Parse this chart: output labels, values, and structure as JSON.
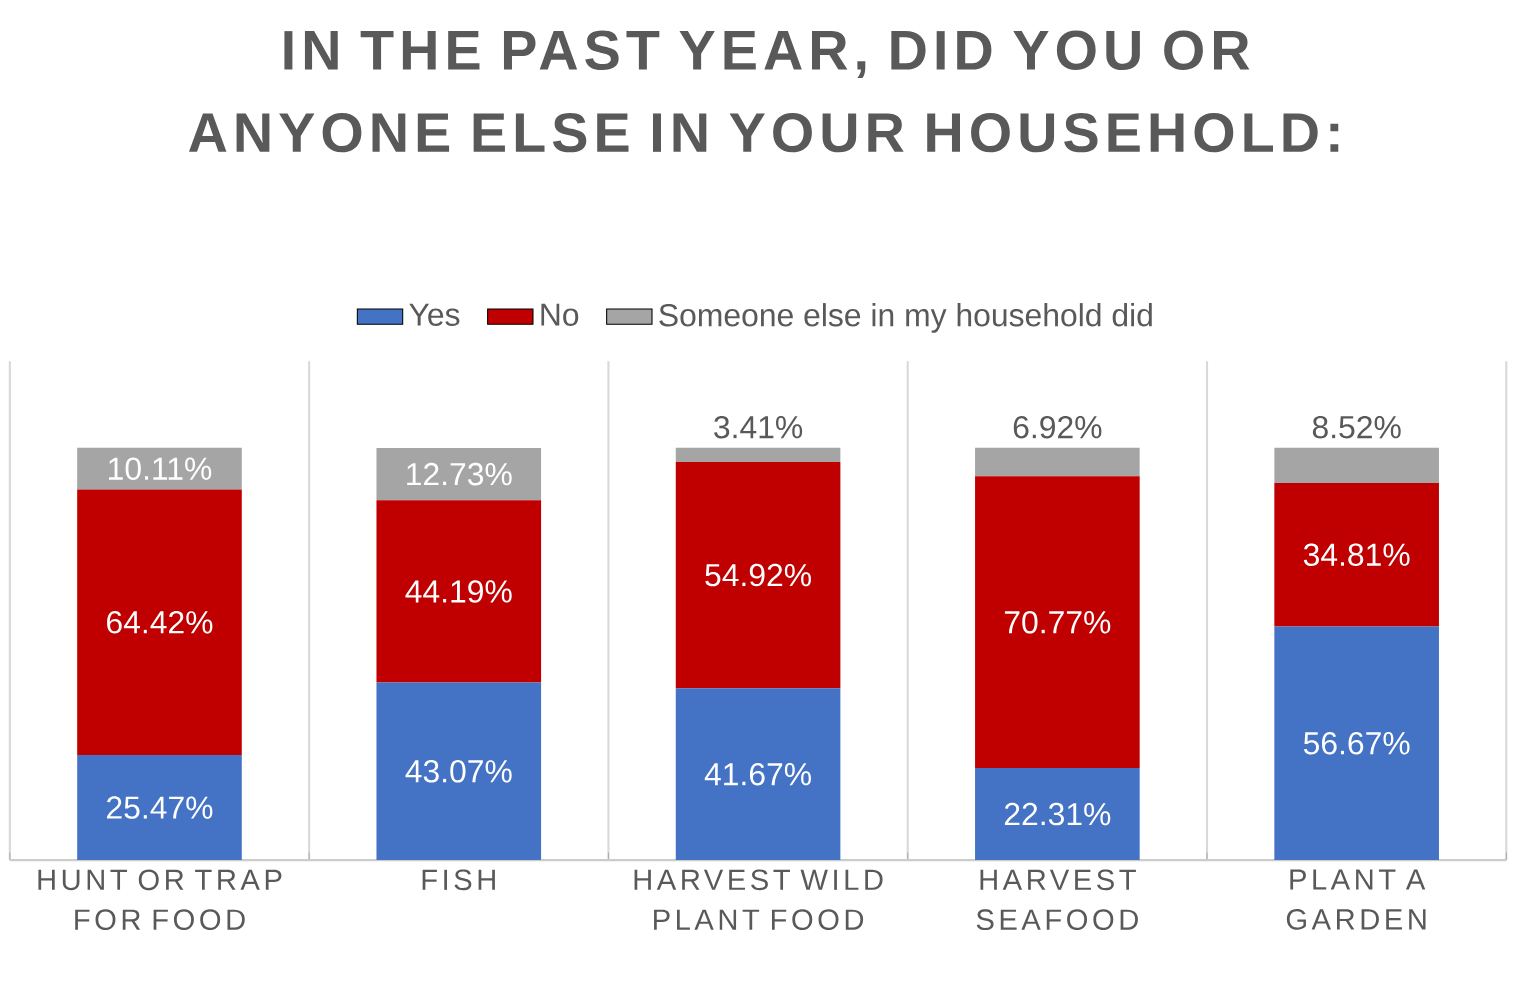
{
  "chart_data": {
    "type": "bar",
    "stacked": true,
    "title": "IN THE PAST YEAR, DID YOU OR ANYONE ELSE IN YOUR HOUSEHOLD:",
    "categories": [
      "HUNT OR TRAP FOR FOOD",
      "FISH",
      "HARVEST WILD PLANT FOOD",
      "HARVEST SEAFOOD",
      "PLANT A GARDEN"
    ],
    "series": [
      {
        "name": "Yes",
        "color": "#4472c4",
        "values": [
          25.47,
          43.07,
          41.67,
          22.31,
          56.67
        ],
        "value_labels": [
          "25.47%",
          "43.07%",
          "41.67%",
          "22.31%",
          "56.67%"
        ]
      },
      {
        "name": "No",
        "color": "#c00000",
        "values": [
          64.42,
          44.19,
          54.92,
          70.77,
          34.81
        ],
        "value_labels": [
          "64.42%",
          "44.19%",
          "54.92%",
          "70.77%",
          "34.81%"
        ]
      },
      {
        "name": "Someone else in my household did",
        "color": "#a5a5a5",
        "values": [
          10.11,
          12.73,
          3.41,
          6.92,
          8.52
        ],
        "value_labels": [
          "10.11%",
          "12.73%",
          "3.41%",
          "6.92%",
          "8.52%"
        ]
      }
    ],
    "legend": "top",
    "grid": "x"
  }
}
